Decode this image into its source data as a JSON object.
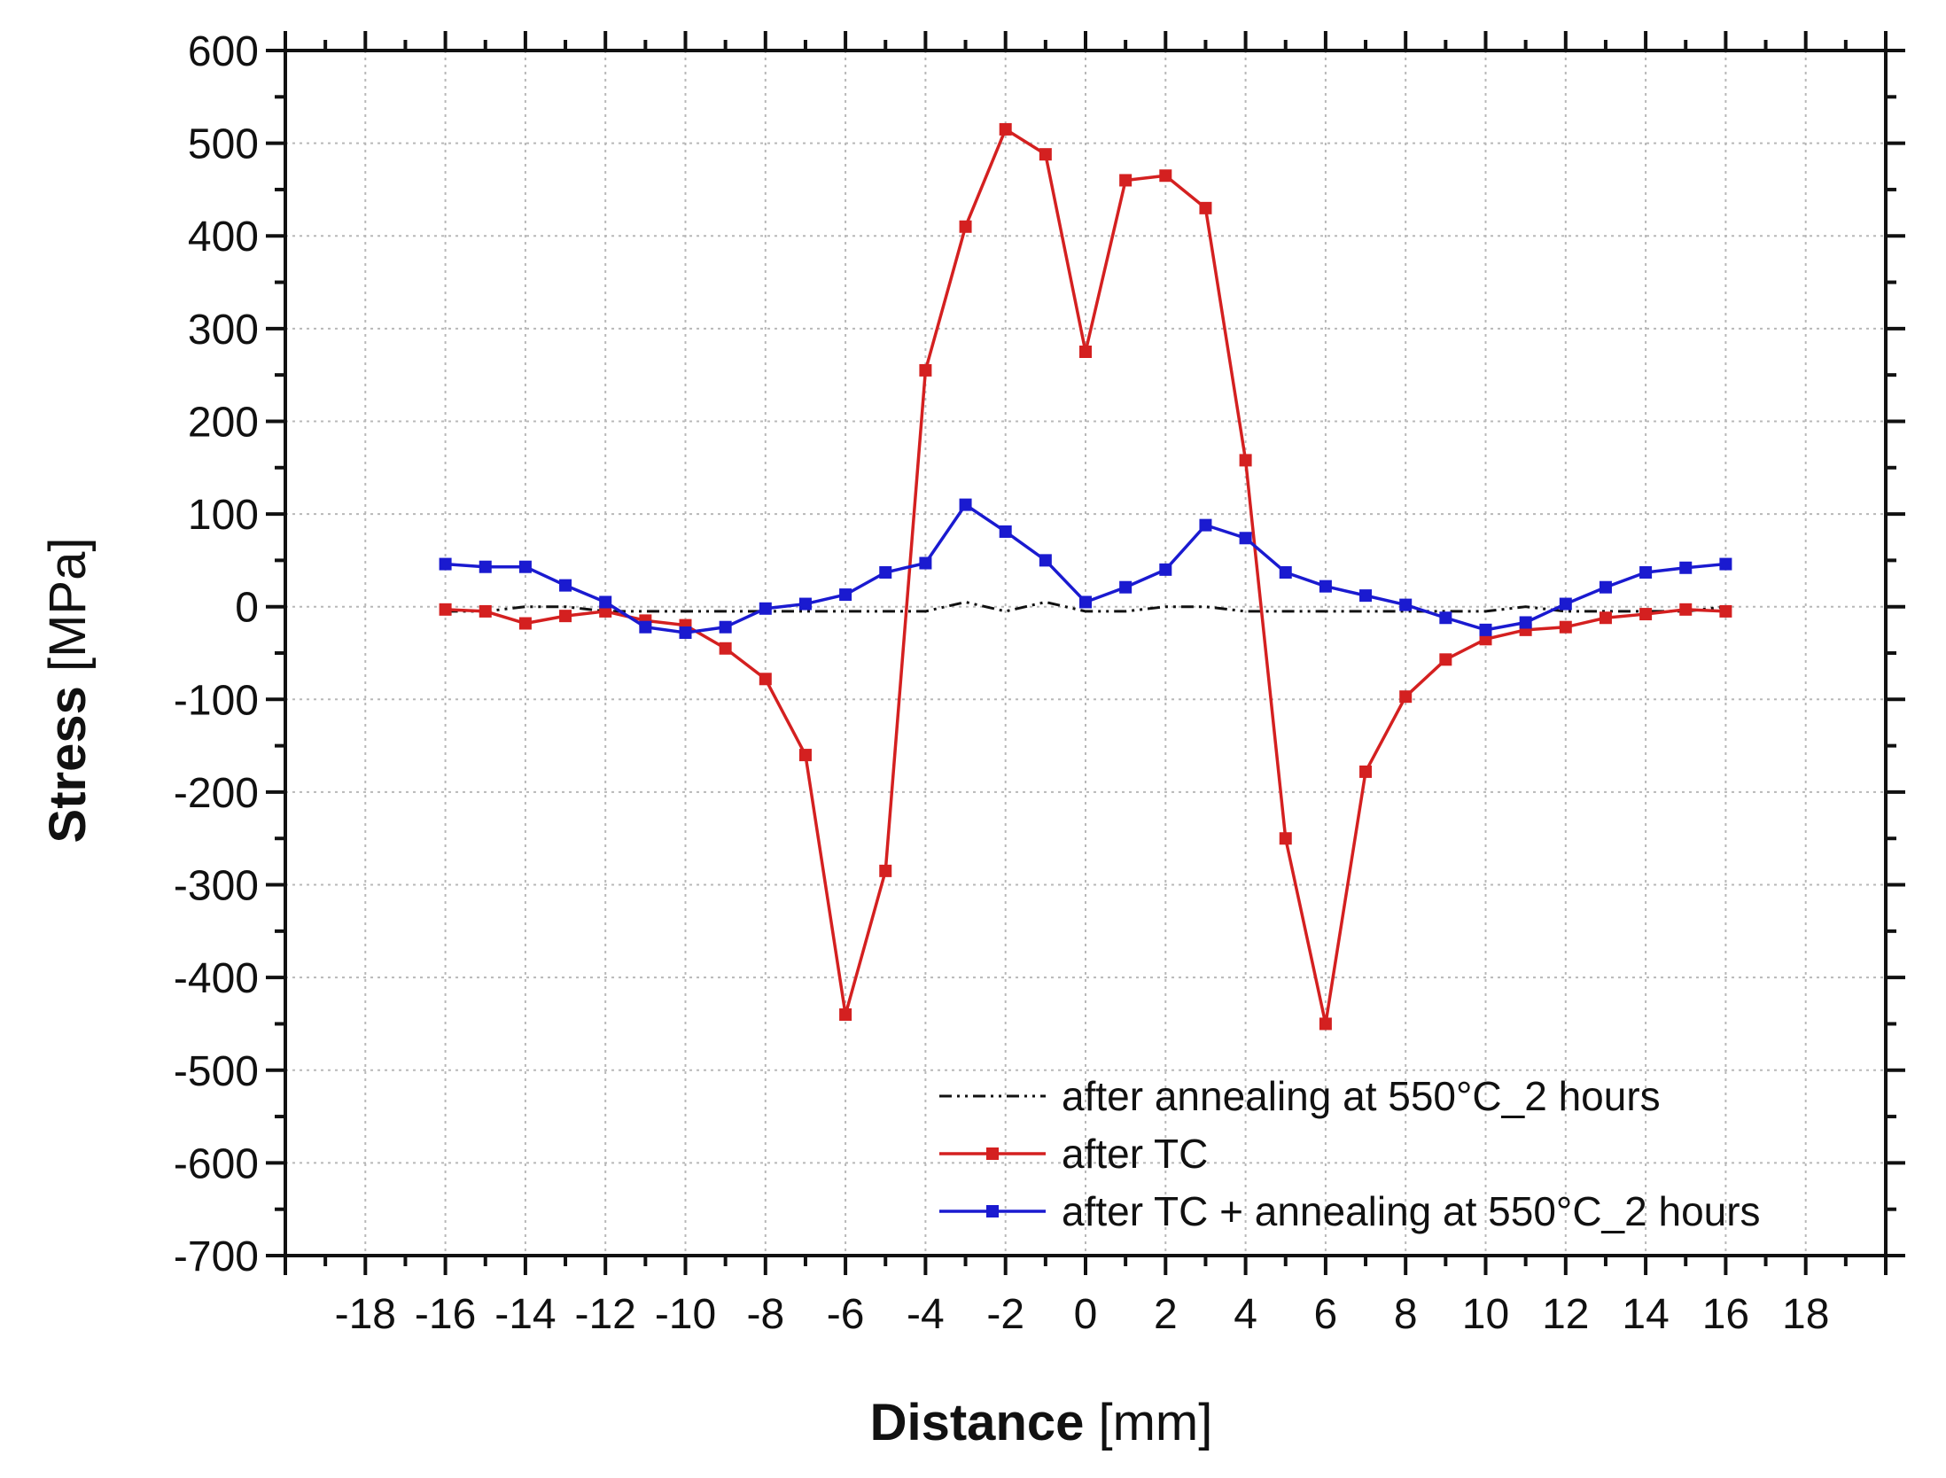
{
  "chart_data": {
    "type": "line",
    "title": "",
    "xlabel_bold": "Distance",
    "xlabel_unit": " [mm]",
    "ylabel_bold": "Stress",
    "ylabel_unit": " [MPa]",
    "xlim": [
      -20,
      20
    ],
    "ylim": [
      -700,
      600
    ],
    "xticks": [
      -18,
      -16,
      -14,
      -12,
      -10,
      -8,
      -6,
      -4,
      -2,
      0,
      2,
      4,
      6,
      8,
      10,
      12,
      14,
      16,
      18
    ],
    "xtick_labels": [
      "-18",
      "-16",
      "-14",
      "-12",
      "-10",
      "-8",
      "-6",
      "-4",
      "-2",
      "0",
      "2",
      "4",
      "6",
      "8",
      "10",
      "12",
      "14",
      "16",
      "18"
    ],
    "yticks": [
      -700,
      -600,
      -500,
      -400,
      -300,
      -200,
      -100,
      0,
      100,
      200,
      300,
      400,
      500,
      600
    ],
    "ytick_labels": [
      "-700",
      "-600",
      "-500",
      "-400",
      "-300",
      "-200",
      "-100",
      "0",
      "100",
      "200",
      "300",
      "400",
      "500",
      "600"
    ],
    "grid": true,
    "legend_position": "bottom-right",
    "x": [
      -16,
      -15,
      -14,
      -13,
      -12,
      -11,
      -10,
      -9,
      -8,
      -7,
      -6,
      -5,
      -4,
      -3,
      -2,
      -1,
      0,
      1,
      2,
      3,
      4,
      5,
      6,
      7,
      8,
      9,
      10,
      11,
      12,
      13,
      14,
      15,
      16
    ],
    "series": [
      {
        "name": "after annealing at 550°C_2 hours",
        "color": "#111111",
        "style": "dash-dot-dot",
        "markers": false,
        "values": [
          -5,
          -5,
          0,
          0,
          -5,
          -5,
          -5,
          -5,
          -5,
          -5,
          -5,
          -5,
          -5,
          5,
          -5,
          5,
          -5,
          -5,
          0,
          0,
          -5,
          -5,
          -5,
          -5,
          -5,
          -5,
          -5,
          0,
          -5,
          -5,
          -5,
          -5,
          0
        ]
      },
      {
        "name": "after TC",
        "color": "#d42020",
        "style": "solid",
        "markers": true,
        "values": [
          -3,
          -5,
          -18,
          -10,
          -5,
          -15,
          -20,
          -45,
          -78,
          -160,
          -440,
          -285,
          255,
          410,
          515,
          488,
          275,
          460,
          465,
          430,
          158,
          -250,
          -450,
          -178,
          -97,
          -57,
          -35,
          -25,
          -22,
          -12,
          -8,
          -3,
          -5
        ]
      },
      {
        "name": "after TC + annealing at 550°C_2 hours",
        "color": "#1a1ad0",
        "style": "solid",
        "markers": true,
        "values": [
          46,
          43,
          43,
          23,
          5,
          -22,
          -28,
          -22,
          -2,
          3,
          13,
          37,
          47,
          110,
          81,
          50,
          5,
          21,
          40,
          88,
          74,
          37,
          22,
          12,
          2,
          -12,
          -25,
          -17,
          3,
          21,
          37,
          42,
          46
        ]
      }
    ]
  }
}
